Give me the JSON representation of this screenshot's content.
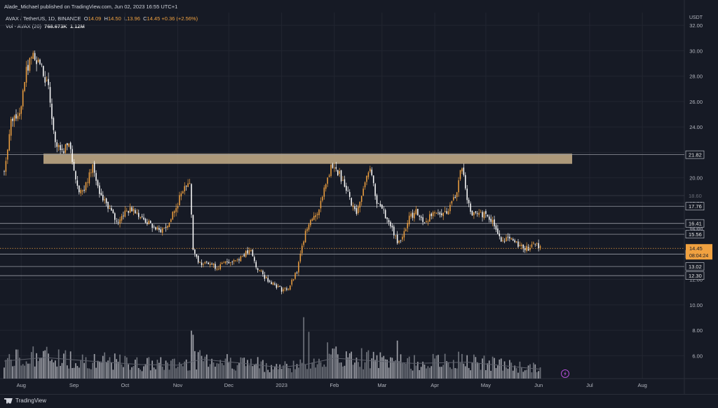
{
  "header": {
    "publisher_line": "Alade_Michael published on TradingView.com, Jun 02, 2023 16:55 UTC+1",
    "symbol": "AVAX / TetherUS, 1D, BINANCE",
    "ohlc": [
      {
        "key": "O",
        "value": "14.09"
      },
      {
        "key": "H",
        "value": "14.50"
      },
      {
        "key": "L",
        "value": "13.96"
      },
      {
        "key": "C",
        "value": "14.45"
      }
    ],
    "change": "+0.36 (+2.56%)",
    "volume_label": "Vol - AVAX (20)",
    "volume_value": "768.673K",
    "volume_ma": "1.12M",
    "currency": "USDT"
  },
  "footer": {
    "brand": "TradingView"
  },
  "colors": {
    "background": "#161a25",
    "up_candle": "#f0a140",
    "down_candle": "#ffffff",
    "resistance_zone": "#c8b08a",
    "price_tag": "#f0a140",
    "level_line": "#9598a1"
  },
  "chart_data": {
    "type": "candlestick",
    "price_axis": {
      "ticks": [
        32,
        30,
        28,
        26,
        24,
        22,
        20,
        18,
        16,
        14,
        12,
        10,
        8,
        6
      ],
      "labels": [
        "32.00",
        "30.00",
        "28.00",
        "26.00",
        "24.00",
        "22.00",
        "20.00",
        "18.00",
        "16.00",
        "14.00",
        "12.00",
        "10.00",
        "8.00",
        "6.00"
      ],
      "range": [
        4.2,
        33.0
      ]
    },
    "time_axis": {
      "labels": [
        "Aug",
        "Sep",
        "Oct",
        "Nov",
        "Dec",
        "2023",
        "Feb",
        "Mar",
        "Apr",
        "May",
        "Jun",
        "Jul",
        "Aug"
      ],
      "start_date": "2022-07-22",
      "end_date": "2023-08-24",
      "label_dates": [
        "2022-08-01",
        "2022-09-01",
        "2022-10-01",
        "2022-11-01",
        "2022-12-01",
        "2023-01-01",
        "2023-02-01",
        "2023-03-01",
        "2023-04-01",
        "2023-05-01",
        "2023-06-01",
        "2023-07-01",
        "2023-08-01"
      ]
    },
    "resistance_zone": {
      "low": 21.1,
      "high": 21.9
    },
    "horizontal_levels": [
      {
        "value": 21.82,
        "label": "21.82"
      },
      {
        "value": 17.76,
        "label": "17.76"
      },
      {
        "value": 16.41,
        "label": "16.41"
      },
      {
        "value": 15.56,
        "label": "15.56"
      },
      {
        "value": 13.99,
        "label": "13.99"
      },
      {
        "value": 13.02,
        "label": "13.02"
      },
      {
        "value": 12.3,
        "label": "12.30"
      }
    ],
    "faint_levels": [
      {
        "value": 18.6,
        "label": "18.60"
      },
      {
        "value": 16.0,
        "label": "16.00"
      }
    ],
    "last_price": {
      "value": 14.45,
      "label": "14.45",
      "countdown": "08:04:24"
    },
    "close_path": [
      [
        "2022-07-22",
        20.5
      ],
      [
        "2022-07-26",
        24.5
      ],
      [
        "2022-08-01",
        25.5
      ],
      [
        "2022-08-04",
        28.5
      ],
      [
        "2022-08-08",
        29.7
      ],
      [
        "2022-08-12",
        29.0
      ],
      [
        "2022-08-17",
        27.0
      ],
      [
        "2022-08-21",
        22.5
      ],
      [
        "2022-08-25",
        22.0
      ],
      [
        "2022-08-29",
        23.0
      ],
      [
        "2022-09-03",
        19.2
      ],
      [
        "2022-09-07",
        19.0
      ],
      [
        "2022-09-12",
        21.0
      ],
      [
        "2022-09-16",
        18.5
      ],
      [
        "2022-09-21",
        17.8
      ],
      [
        "2022-09-26",
        16.5
      ],
      [
        "2022-10-01",
        17.3
      ],
      [
        "2022-10-06",
        17.6
      ],
      [
        "2022-10-11",
        16.8
      ],
      [
        "2022-10-16",
        16.3
      ],
      [
        "2022-10-21",
        15.8
      ],
      [
        "2022-10-26",
        16.2
      ],
      [
        "2022-11-01",
        18.0
      ],
      [
        "2022-11-05",
        19.5
      ],
      [
        "2022-11-08",
        19.6
      ],
      [
        "2022-11-10",
        14.5
      ],
      [
        "2022-11-13",
        13.2
      ],
      [
        "2022-11-18",
        13.5
      ],
      [
        "2022-11-24",
        12.9
      ],
      [
        "2022-11-30",
        13.4
      ],
      [
        "2022-12-06",
        13.6
      ],
      [
        "2022-12-10",
        14.0
      ],
      [
        "2022-12-14",
        14.2
      ],
      [
        "2022-12-17",
        13.0
      ],
      [
        "2022-12-22",
        12.2
      ],
      [
        "2022-12-28",
        11.6
      ],
      [
        "2023-01-01",
        11.2
      ],
      [
        "2023-01-05",
        11.3
      ],
      [
        "2023-01-10",
        12.6
      ],
      [
        "2023-01-14",
        15.2
      ],
      [
        "2023-01-18",
        16.8
      ],
      [
        "2023-01-23",
        17.5
      ],
      [
        "2023-01-27",
        19.5
      ],
      [
        "2023-01-30",
        20.8
      ],
      [
        "2023-02-03",
        20.5
      ],
      [
        "2023-02-08",
        19.2
      ],
      [
        "2023-02-11",
        18.0
      ],
      [
        "2023-02-14",
        17.2
      ],
      [
        "2023-02-19",
        19.8
      ],
      [
        "2023-02-22",
        21.0
      ],
      [
        "2023-02-26",
        18.0
      ],
      [
        "2023-03-01",
        17.5
      ],
      [
        "2023-03-05",
        16.6
      ],
      [
        "2023-03-10",
        15.0
      ],
      [
        "2023-03-13",
        15.4
      ],
      [
        "2023-03-17",
        16.8
      ],
      [
        "2023-03-21",
        17.4
      ],
      [
        "2023-03-25",
        16.5
      ],
      [
        "2023-03-30",
        17.0
      ],
      [
        "2023-04-04",
        17.2
      ],
      [
        "2023-04-09",
        17.5
      ],
      [
        "2023-04-14",
        19.0
      ],
      [
        "2023-04-17",
        21.0
      ],
      [
        "2023-04-19",
        19.0
      ],
      [
        "2023-04-22",
        17.2
      ],
      [
        "2023-04-27",
        17.0
      ],
      [
        "2023-05-01",
        17.3
      ],
      [
        "2023-05-05",
        16.6
      ],
      [
        "2023-05-09",
        15.2
      ],
      [
        "2023-05-13",
        15.2
      ],
      [
        "2023-05-18",
        14.9
      ],
      [
        "2023-05-22",
        14.6
      ],
      [
        "2023-05-26",
        14.4
      ],
      [
        "2023-05-29",
        14.9
      ],
      [
        "2023-06-02",
        14.45
      ]
    ],
    "volume": {
      "axis_range": [
        0,
        12
      ],
      "ma_path": [
        [
          "2022-07-22",
          3.0
        ],
        [
          "2022-08-15",
          3.6
        ],
        [
          "2022-09-10",
          3.0
        ],
        [
          "2022-10-10",
          2.4
        ],
        [
          "2022-11-01",
          2.3
        ],
        [
          "2022-11-15",
          3.3
        ],
        [
          "2022-12-10",
          2.6
        ],
        [
          "2022-12-31",
          1.9
        ],
        [
          "2023-01-15",
          2.4
        ],
        [
          "2023-02-01",
          3.5
        ],
        [
          "2023-02-25",
          3.0
        ],
        [
          "2023-03-20",
          2.6
        ],
        [
          "2023-04-20",
          2.8
        ],
        [
          "2023-05-15",
          2.1
        ],
        [
          "2023-06-02",
          1.6
        ]
      ],
      "spikes": [
        [
          "2022-08-08",
          5.5
        ],
        [
          "2022-09-13",
          4.2
        ],
        [
          "2022-11-09",
          8.2
        ],
        [
          "2022-11-10",
          7.5
        ],
        [
          "2023-01-14",
          10.5
        ],
        [
          "2023-01-17",
          8.0
        ],
        [
          "2023-01-28",
          6.2
        ],
        [
          "2023-02-17",
          5.2
        ],
        [
          "2023-03-10",
          6.5
        ],
        [
          "2023-04-15",
          4.6
        ],
        [
          "2023-04-20",
          4.0
        ]
      ]
    }
  }
}
